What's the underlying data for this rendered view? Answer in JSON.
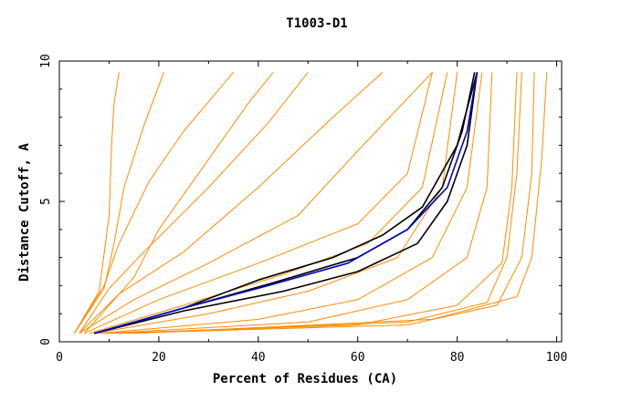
{
  "chart_data": {
    "type": "line",
    "title": "T1003-D1",
    "xlabel": "Percent of Residues (CA)",
    "ylabel": "Distance Cutoff, A",
    "xlim": [
      0,
      101
    ],
    "ylim": [
      0,
      10
    ],
    "xticks": [
      "0",
      "20",
      "40",
      "60",
      "80",
      "100"
    ],
    "yticks": [
      "0",
      "5",
      "10"
    ],
    "grid": false,
    "legend": "none",
    "colors": {
      "background": "#ffffff",
      "axes": "#000000",
      "other_models": "#ff8c00",
      "highlight_black": "#000000",
      "highlight_blue": "#0000cc"
    },
    "series": [
      {
        "color": "#ff8c00",
        "x": [
          3,
          8,
          10,
          10.5,
          11,
          12
        ],
        "y": [
          0.3,
          1.8,
          4.5,
          7.0,
          8.5,
          9.6
        ]
      },
      {
        "color": "#ff8c00",
        "x": [
          3,
          9,
          11,
          13,
          17,
          21
        ],
        "y": [
          0.3,
          1.9,
          3.5,
          5.5,
          7.7,
          9.6
        ]
      },
      {
        "color": "#ff8c00",
        "x": [
          3,
          9,
          12,
          18,
          25,
          35
        ],
        "y": [
          0.3,
          2.0,
          3.5,
          5.7,
          7.5,
          9.6
        ]
      },
      {
        "color": "#ff8c00",
        "x": [
          4,
          10,
          17,
          30,
          42,
          50
        ],
        "y": [
          0.3,
          1.9,
          3.2,
          5.5,
          7.8,
          9.6
        ]
      },
      {
        "color": "#ff8c00",
        "x": [
          4,
          12,
          25,
          40,
          55,
          65
        ],
        "y": [
          0.3,
          1.7,
          3.2,
          5.5,
          8.0,
          9.6
        ]
      },
      {
        "color": "#ff8c00",
        "x": [
          4,
          15,
          30,
          48,
          60,
          75
        ],
        "y": [
          0.3,
          1.5,
          2.8,
          4.5,
          6.8,
          9.6
        ]
      },
      {
        "color": "#ff8c00",
        "x": [
          5,
          20,
          40,
          60,
          70,
          75
        ],
        "y": [
          0.3,
          1.5,
          2.8,
          4.2,
          6.0,
          9.6
        ]
      },
      {
        "color": "#ff8c00",
        "x": [
          5,
          15,
          20,
          30,
          38,
          43
        ],
        "y": [
          0.3,
          2.3,
          4.0,
          6.5,
          8.5,
          9.6
        ]
      },
      {
        "color": "#ff8c00",
        "x": [
          6,
          25,
          45,
          62,
          73,
          78
        ],
        "y": [
          0.3,
          1.3,
          2.4,
          3.5,
          5.5,
          9.6
        ]
      },
      {
        "color": "#ff8c00",
        "x": [
          7,
          30,
          50,
          68,
          77,
          80
        ],
        "y": [
          0.3,
          1.0,
          1.8,
          3.0,
          5.5,
          9.6
        ]
      },
      {
        "color": "#ff8c00",
        "x": [
          8,
          40,
          60,
          75,
          82,
          85
        ],
        "y": [
          0.3,
          0.8,
          1.5,
          3.0,
          5.5,
          9.6
        ]
      },
      {
        "color": "#ff8c00",
        "x": [
          9,
          50,
          70,
          82,
          86,
          87
        ],
        "y": [
          0.3,
          0.7,
          1.5,
          3.0,
          5.5,
          9.6
        ]
      },
      {
        "color": "#ff8c00",
        "x": [
          10,
          60,
          80,
          89,
          91,
          92
        ],
        "y": [
          0.3,
          0.6,
          1.3,
          2.8,
          5.5,
          9.6
        ]
      },
      {
        "color": "#ff8c00",
        "x": [
          12,
          70,
          88,
          93,
          95,
          95.5
        ],
        "y": [
          0.3,
          0.6,
          1.3,
          3.0,
          6.0,
          9.6
        ]
      },
      {
        "color": "#ff8c00",
        "x": [
          15,
          75,
          92,
          95,
          97,
          98
        ],
        "y": [
          0.3,
          0.8,
          1.6,
          3.0,
          6.5,
          9.6
        ]
      },
      {
        "color": "#ff8c00",
        "x": [
          14,
          70,
          86,
          90,
          92,
          93
        ],
        "y": [
          0.3,
          0.7,
          1.4,
          3.0,
          6.0,
          9.6
        ]
      },
      {
        "color": "#000000",
        "x": [
          7,
          25,
          45,
          60,
          72,
          78,
          82,
          84
        ],
        "y": [
          0.3,
          1.1,
          1.8,
          2.5,
          3.5,
          5.0,
          7.0,
          9.6
        ]
      },
      {
        "color": "#000000",
        "x": [
          7,
          25,
          43,
          60,
          70,
          77,
          81,
          83.5
        ],
        "y": [
          0.3,
          1.2,
          2.1,
          3.0,
          4.0,
          5.5,
          7.5,
          9.6
        ]
      },
      {
        "color": "#000000",
        "x": [
          7,
          25,
          40,
          55,
          65,
          73,
          80,
          84
        ],
        "y": [
          0.3,
          1.2,
          2.2,
          3.0,
          3.8,
          4.8,
          7.0,
          9.6
        ]
      },
      {
        "color": "#0000cc",
        "x": [
          7,
          25,
          42,
          58,
          70,
          78,
          82,
          84
        ],
        "y": [
          0.3,
          1.2,
          2.0,
          2.8,
          4.0,
          5.5,
          7.5,
          9.6
        ]
      }
    ]
  }
}
